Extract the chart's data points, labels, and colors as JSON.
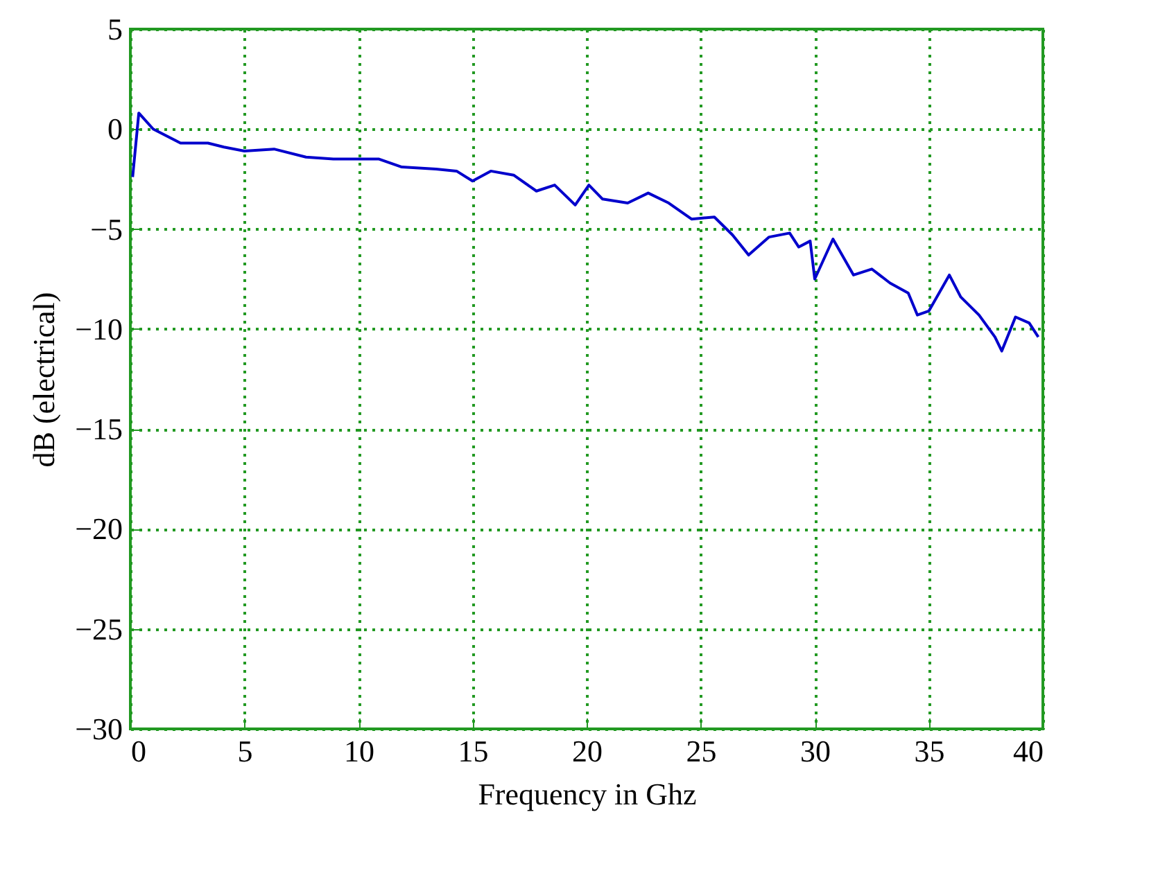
{
  "chart_data": {
    "type": "line",
    "xlabel": "Frequency in Ghz",
    "ylabel": "dB (electrical)",
    "xlim": [
      0,
      40
    ],
    "xticks": [
      0,
      5,
      10,
      15,
      20,
      25,
      30,
      35,
      40
    ],
    "ylim": [
      -30,
      5
    ],
    "yticks": [
      -30,
      -25,
      -20,
      -15,
      -10,
      -5,
      0,
      5
    ],
    "grid": true,
    "series": [
      {
        "color": "#0000cc",
        "x": [
          0.1,
          0.37,
          1.0,
          2.2,
          3.4,
          4.1,
          5.0,
          6.3,
          7.7,
          8.9,
          10.9,
          11.9,
          13.4,
          14.3,
          15.0,
          15.8,
          16.8,
          17.8,
          18.6,
          19.5,
          20.1,
          20.7,
          21.8,
          22.7,
          23.6,
          24.6,
          25.6,
          26.4,
          27.1,
          28.0,
          28.9,
          29.3,
          29.8,
          30.0,
          30.8,
          31.7,
          32.5,
          33.3,
          34.1,
          34.5,
          35.0,
          35.9,
          36.4,
          37.2,
          37.9,
          38.2,
          38.8,
          39.4,
          39.8
        ],
        "values": [
          -2.4,
          0.8,
          0,
          -0.7,
          -0.7,
          -0.9,
          -1.1,
          -1.0,
          -1.4,
          -1.5,
          -1.5,
          -1.9,
          -2.0,
          -2.1,
          -2.6,
          -2.1,
          -2.3,
          -3.1,
          -2.8,
          -3.8,
          -2.8,
          -3.5,
          -3.7,
          -3.2,
          -3.7,
          -4.5,
          -4.4,
          -5.3,
          -6.3,
          -5.4,
          -5.2,
          -5.9,
          -5.6,
          -7.5,
          -5.5,
          -7.3,
          -7.0,
          -7.7,
          -8.2,
          -9.3,
          -9.1,
          -7.3,
          -8.4,
          -9.3,
          -10.4,
          -11.1,
          -9.4,
          -9.7,
          -10.4
        ]
      }
    ]
  }
}
